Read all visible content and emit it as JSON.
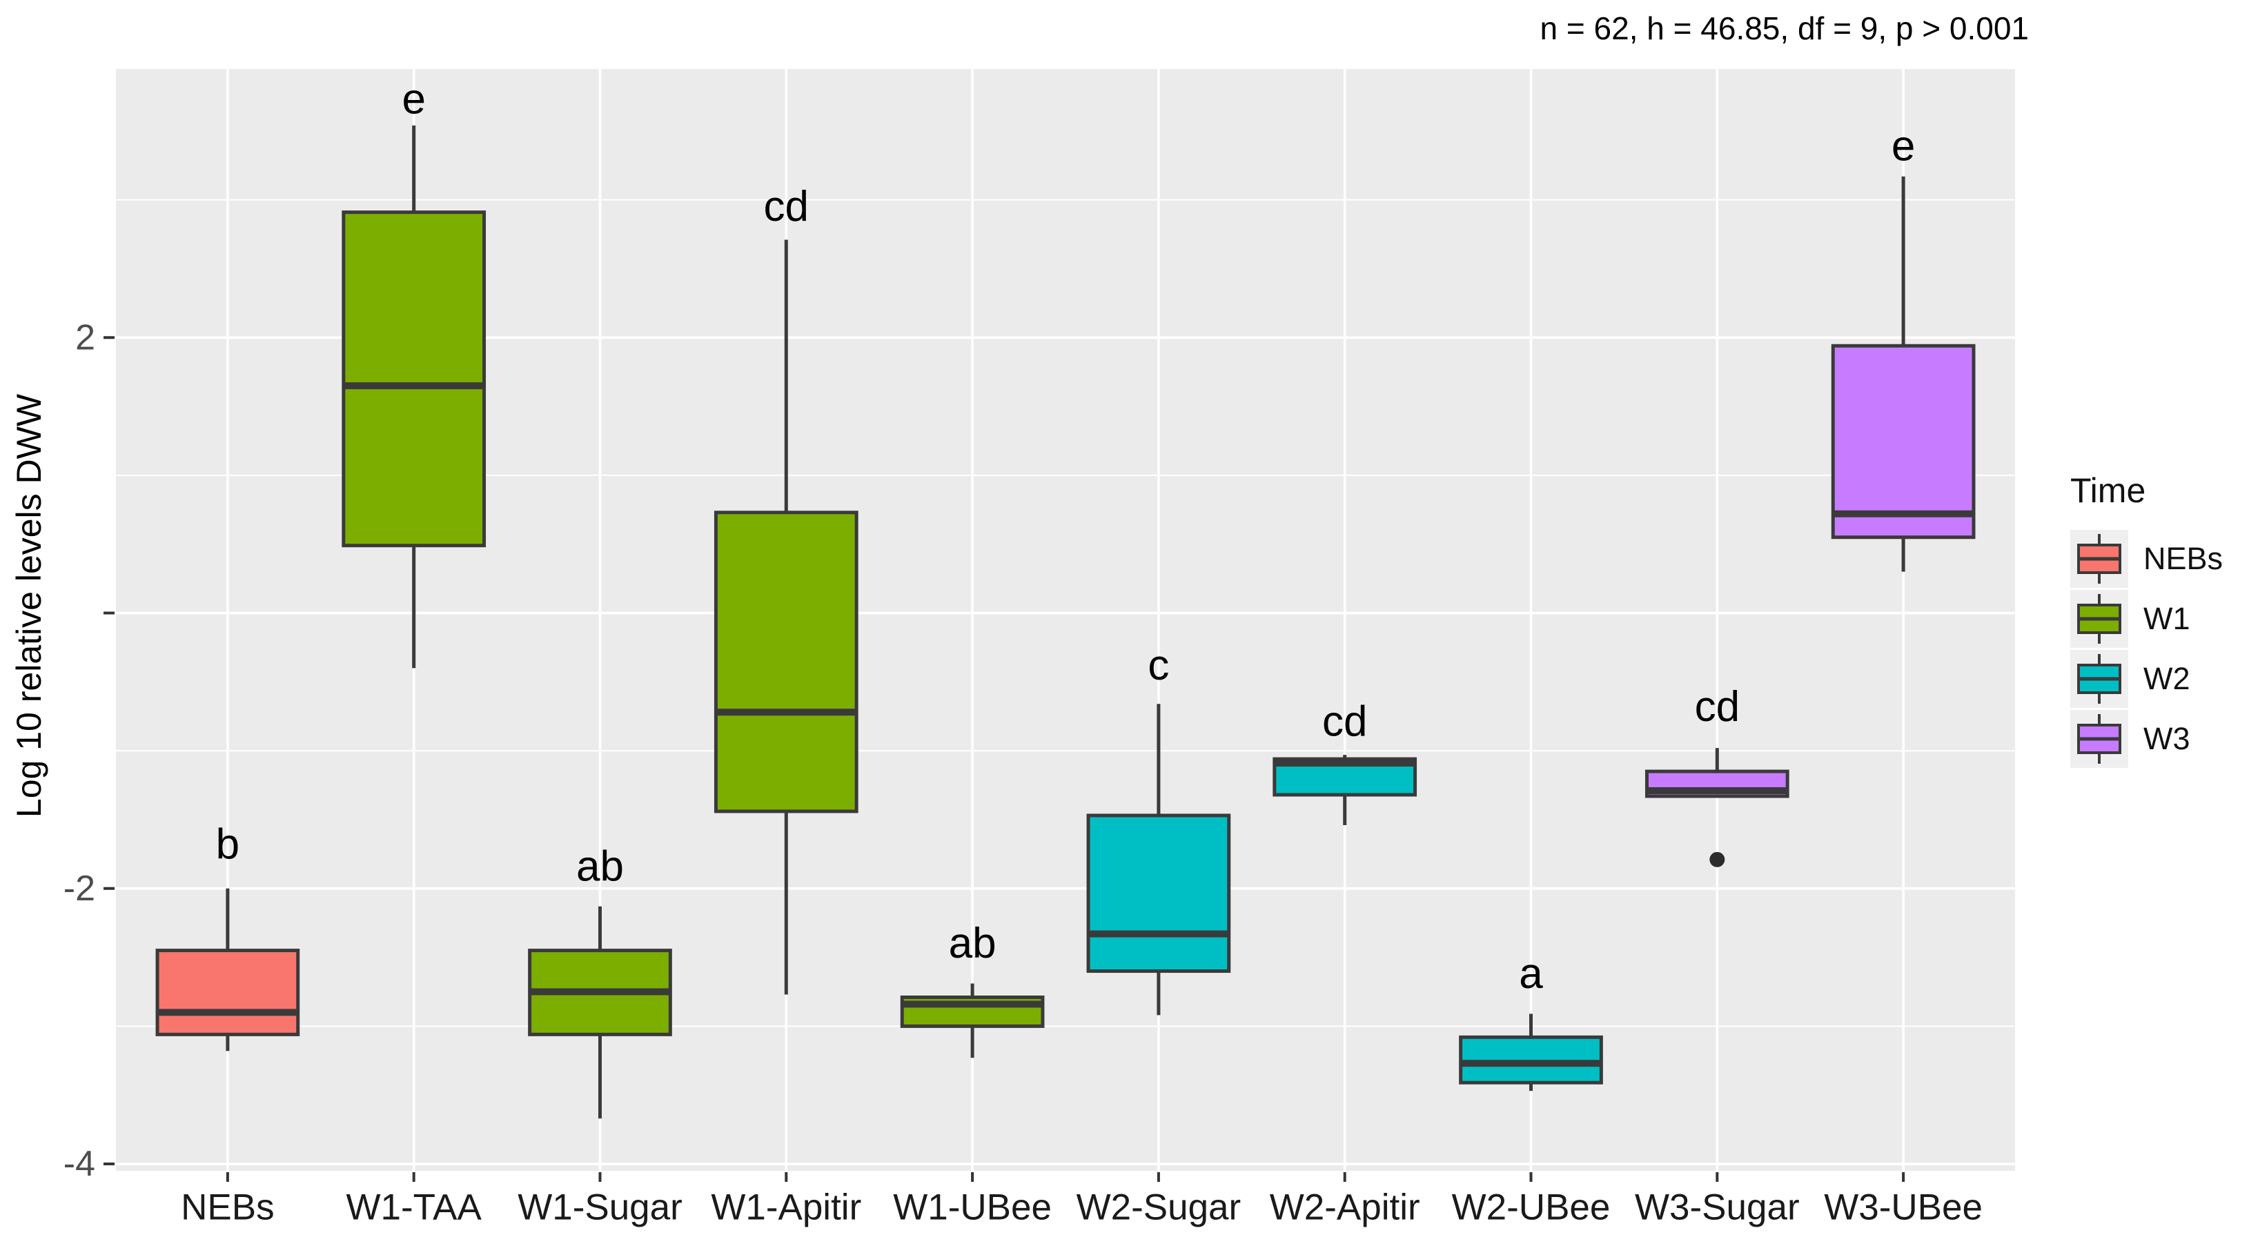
{
  "annotation": "n = 62, h = 46.85, df = 9, p > 0.001",
  "y_axis": {
    "title": "Log 10 relative levels DWW",
    "ticks": [
      {
        "value": 2,
        "label": "2"
      },
      {
        "value": 0,
        "label": ""
      },
      {
        "value": -2,
        "label": "-2"
      },
      {
        "value": -4,
        "label": "-4"
      }
    ]
  },
  "legend": {
    "title": "Time",
    "entries": [
      {
        "label": "NEBs",
        "color": "#F8766D"
      },
      {
        "label": "W1",
        "color": "#7CAE00"
      },
      {
        "label": "W2",
        "color": "#00BFC4"
      },
      {
        "label": "W3",
        "color": "#C77CFF"
      }
    ]
  },
  "colors": {
    "panel_background": "#EBEBEB",
    "gridline": "#FFFFFF",
    "box_border": "#3A3A3A",
    "tick_mark": "#333333",
    "y_tick_label": "#4D4D4D",
    "x_tick_label": "#1A1A1A",
    "letter": "#000000",
    "outlier": "#2B2B2B",
    "legend_key_background": "#EFEFEF"
  },
  "chart_data": {
    "type": "boxplot",
    "title": "n = 62, h = 46.85, df = 9, p > 0.001",
    "xlabel": "",
    "ylabel": "Log 10 relative levels DWW",
    "ylim": [
      -4.05,
      3.95
    ],
    "y_major_gridlines": [
      2,
      0,
      -2,
      -4
    ],
    "y_minor_gridlines": [
      3,
      1,
      -1,
      -3
    ],
    "grid": "on",
    "legend_position": "right",
    "legend_title": "Time",
    "groups": [
      "NEBs",
      "W1",
      "W2",
      "W3"
    ],
    "categories": [
      "NEBs",
      "W1-TAA",
      "W1-Sugar",
      "W1-Apitir",
      "W1-UBee",
      "W2-Sugar",
      "W2-Apitir",
      "W2-UBee",
      "W3-Sugar",
      "W3-UBee"
    ],
    "boxes": [
      {
        "category": "NEBs",
        "group": "NEBs",
        "color": "#F8766D",
        "letter": "b",
        "letter_y": -1.68,
        "whisker_low": -3.18,
        "q1": -3.06,
        "median": -2.9,
        "q3": -2.45,
        "whisker_high": -2.0,
        "outliers": []
      },
      {
        "category": "W1-TAA",
        "group": "W1",
        "color": "#7CAE00",
        "letter": "e",
        "letter_y": 3.73,
        "whisker_low": -0.4,
        "q1": 0.49,
        "median": 1.65,
        "q3": 2.91,
        "whisker_high": 3.54,
        "outliers": []
      },
      {
        "category": "W1-Sugar",
        "group": "W1",
        "color": "#7CAE00",
        "letter": "ab",
        "letter_y": -1.84,
        "whisker_low": -3.67,
        "q1": -3.06,
        "median": -2.75,
        "q3": -2.45,
        "whisker_high": -2.13,
        "outliers": []
      },
      {
        "category": "W1-Apitir",
        "group": "W1",
        "color": "#7CAE00",
        "letter": "cd",
        "letter_y": 2.95,
        "whisker_low": -2.77,
        "q1": -1.44,
        "median": -0.72,
        "q3": 0.73,
        "whisker_high": 2.71,
        "outliers": []
      },
      {
        "category": "W1-UBee",
        "group": "W1",
        "color": "#7CAE00",
        "letter": "ab",
        "letter_y": -2.4,
        "whisker_low": -3.23,
        "q1": -3.0,
        "median": -2.84,
        "q3": -2.79,
        "whisker_high": -2.69,
        "outliers": []
      },
      {
        "category": "W2-Sugar",
        "group": "W2",
        "color": "#00BFC4",
        "letter": "c",
        "letter_y": -0.38,
        "whisker_low": -2.92,
        "q1": -2.6,
        "median": -2.33,
        "q3": -1.47,
        "whisker_high": -0.66,
        "outliers": []
      },
      {
        "category": "W2-Apitir",
        "group": "W2",
        "color": "#00BFC4",
        "letter": "cd",
        "letter_y": -0.79,
        "whisker_low": -1.54,
        "q1": -1.32,
        "median": -1.09,
        "q3": -1.06,
        "whisker_high": -1.03,
        "outliers": []
      },
      {
        "category": "W2-UBee",
        "group": "W2",
        "color": "#00BFC4",
        "letter": "a",
        "letter_y": -2.62,
        "whisker_low": -3.47,
        "q1": -3.41,
        "median": -3.27,
        "q3": -3.08,
        "whisker_high": -2.91,
        "outliers": []
      },
      {
        "category": "W3-Sugar",
        "group": "W3",
        "color": "#C77CFF",
        "letter": "cd",
        "letter_y": -0.68,
        "whisker_low": -1.33,
        "q1": -1.33,
        "median": -1.29,
        "q3": -1.15,
        "whisker_high": -0.98,
        "outliers": [
          -1.79
        ]
      },
      {
        "category": "W3-UBee",
        "group": "W3",
        "color": "#C77CFF",
        "letter": "e",
        "letter_y": 3.39,
        "whisker_low": 0.3,
        "q1": 0.55,
        "median": 0.72,
        "q3": 1.94,
        "whisker_high": 3.17,
        "outliers": []
      }
    ]
  }
}
